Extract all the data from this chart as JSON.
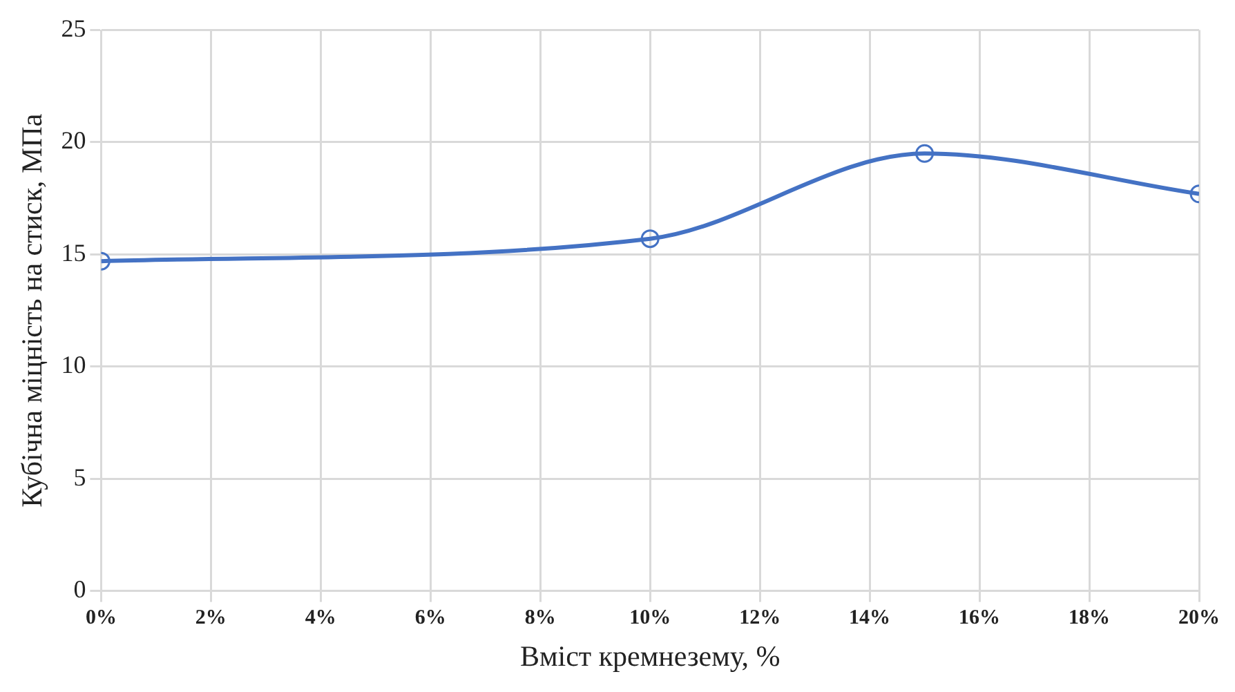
{
  "chart_data": {
    "type": "line",
    "xlabel": "Вміст кремнезему, %",
    "ylabel": "Кубічна міцність на стиск, МПа",
    "x": [
      0,
      10,
      15,
      20
    ],
    "series": [
      {
        "color": "#4472c4",
        "values": [
          14.7,
          15.7,
          19.5,
          17.7
        ]
      }
    ],
    "xlim": [
      0,
      20
    ],
    "xticks": [
      {
        "value": 0,
        "label": "0%"
      },
      {
        "value": 2,
        "label": "2%"
      },
      {
        "value": 4,
        "label": "4%"
      },
      {
        "value": 6,
        "label": "6%"
      },
      {
        "value": 8,
        "label": "8%"
      },
      {
        "value": 10,
        "label": "10%"
      },
      {
        "value": 12,
        "label": "12%"
      },
      {
        "value": 14,
        "label": "14%"
      },
      {
        "value": 16,
        "label": "16%"
      },
      {
        "value": 18,
        "label": "18%"
      },
      {
        "value": 20,
        "label": "20%"
      }
    ],
    "ylim": [
      0,
      25
    ],
    "yticks": [
      0,
      5,
      10,
      15,
      20,
      25
    ],
    "grid": true,
    "legend": false,
    "marker": "circle",
    "line_style": "solid"
  }
}
